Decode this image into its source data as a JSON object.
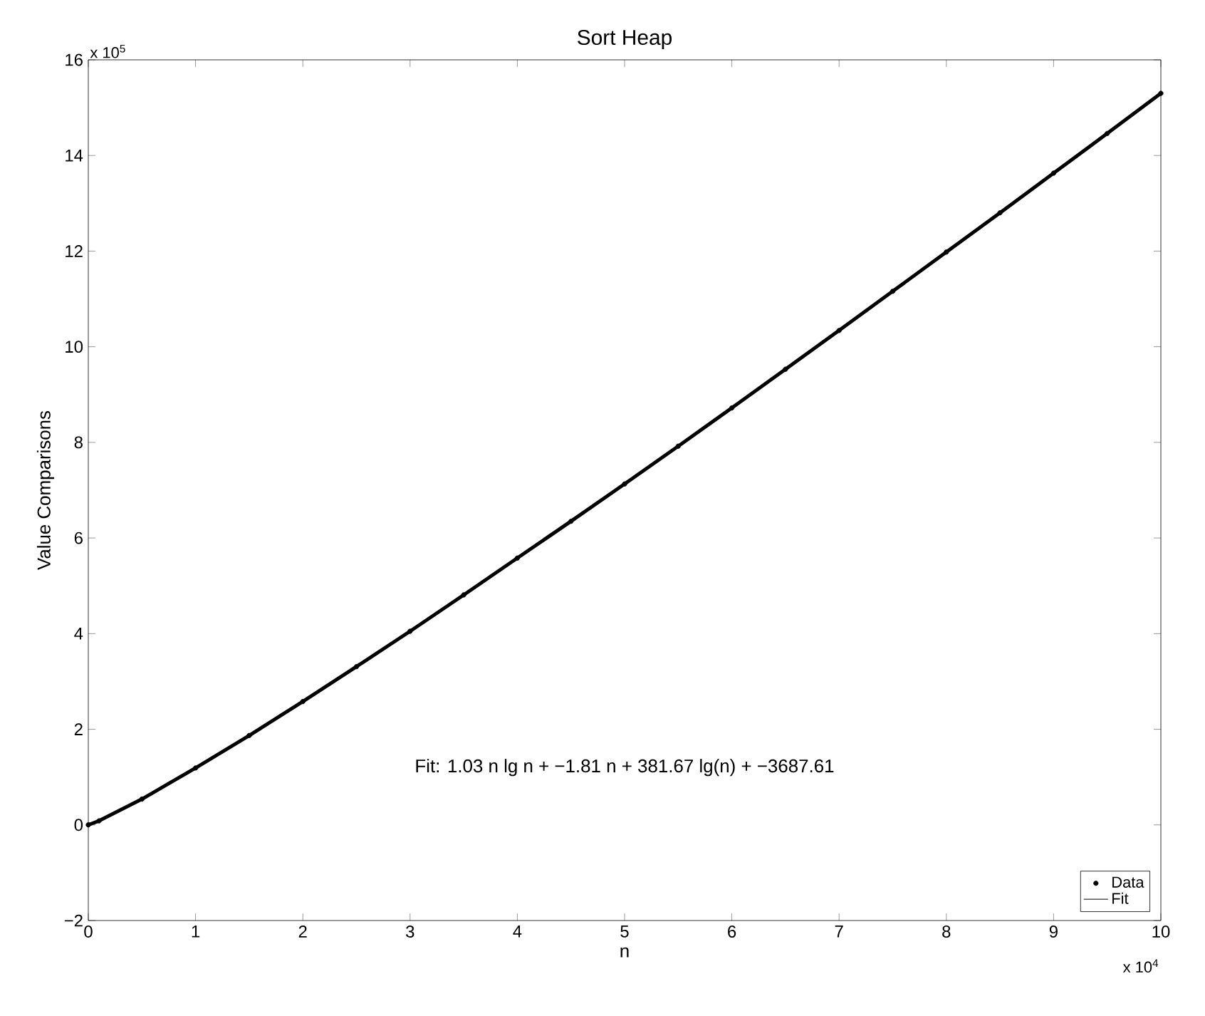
{
  "chart_data": {
    "type": "line",
    "title": "Sort Heap",
    "xlabel": "n",
    "ylabel": "Value Comparisons",
    "x": [
      0,
      0.1,
      0.5,
      1,
      1.5,
      2,
      2.5,
      3,
      3.5,
      4,
      4.5,
      5,
      5.5,
      6,
      6.5,
      7,
      7.5,
      8,
      8.5,
      9,
      9.5,
      10
    ],
    "series": [
      {
        "name": "Data",
        "type": "scatter",
        "marker": "circle",
        "color": "#000000",
        "values": [
          0,
          0.085,
          0.54,
          1.19,
          1.87,
          2.58,
          3.31,
          4.05,
          4.81,
          5.58,
          6.35,
          7.13,
          7.92,
          8.72,
          9.53,
          10.34,
          11.16,
          11.98,
          12.8,
          13.63,
          14.46,
          15.3
        ]
      },
      {
        "name": "Fit",
        "marker": "none",
        "line_style": "solid",
        "color": "#000000",
        "values": [
          0,
          0.085,
          0.54,
          1.19,
          1.87,
          2.58,
          3.31,
          4.05,
          4.81,
          5.58,
          6.35,
          7.13,
          7.92,
          8.72,
          9.53,
          10.34,
          11.16,
          11.98,
          12.8,
          13.63,
          14.46,
          15.3
        ]
      }
    ],
    "xlim": [
      0,
      10
    ],
    "ylim": [
      -2,
      16
    ],
    "xticks": [
      0,
      1,
      2,
      3,
      4,
      5,
      6,
      7,
      8,
      9,
      10
    ],
    "yticks": [
      {
        "value": -2,
        "label": "−2"
      },
      0,
      2,
      4,
      6,
      8,
      10,
      12,
      14,
      16
    ],
    "legend": "bottom right",
    "annotations": [
      "Fit: 1.03 n lg n + −1.81 n + 381.67 lg(n) + −3687.61",
      "x 10$^{5}$",
      "x 10$^{4}$"
    ]
  }
}
